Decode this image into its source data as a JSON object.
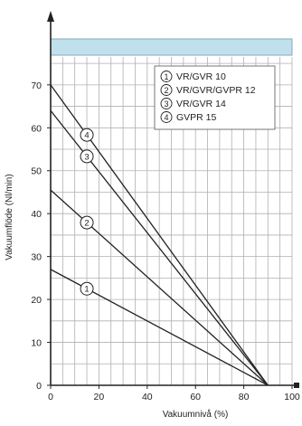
{
  "chart_data": {
    "type": "line",
    "xlabel": "Vakuumnivå (%)",
    "ylabel": "Vakuumflöde (Nl/min)",
    "xlim": [
      0,
      100
    ],
    "ylim": [
      0,
      70
    ],
    "x_ticks": [
      "0",
      "20",
      "40",
      "60",
      "80",
      "100"
    ],
    "y_ticks": [
      "0",
      "10",
      "20",
      "30",
      "40",
      "50",
      "60",
      "70"
    ],
    "grid": true,
    "legend_position": "top-right",
    "series": [
      {
        "name": "VR/GVR 10",
        "marker": "1",
        "x": [
          0,
          90
        ],
        "y": [
          27,
          0
        ]
      },
      {
        "name": "VR/GVR/GVPR 12",
        "marker": "2",
        "x": [
          0,
          90
        ],
        "y": [
          45.5,
          0
        ]
      },
      {
        "name": "VR/GVR 14",
        "marker": "3",
        "x": [
          0,
          90
        ],
        "y": [
          64,
          0
        ]
      },
      {
        "name": "GVPR 15",
        "marker": "4",
        "x": [
          0,
          90
        ],
        "y": [
          70,
          0
        ]
      }
    ],
    "colors": {
      "line": "#222222",
      "grid": "#b0b0b0",
      "top_band": "#bfe0ec",
      "background": "#ffffff"
    }
  }
}
